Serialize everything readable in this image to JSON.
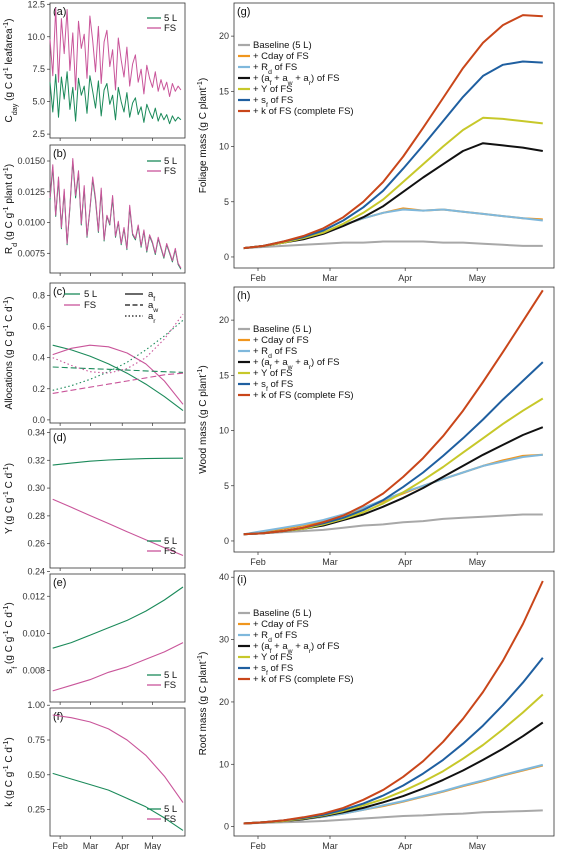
{
  "colors": {
    "green": "#1b8a5a",
    "pink": "#c9559a",
    "baseline": "#a8a8a8",
    "cday": "#f0961e",
    "rd": "#7fb8dc",
    "alloc": "#111111",
    "y": "#c7c82a",
    "sf": "#1f5fa0",
    "k": "#c9461a"
  },
  "month_ticks": [
    "Feb",
    "Mar",
    "Apr",
    "May"
  ],
  "chart_data": [
    {
      "id": "a",
      "panel_label": "(a)",
      "type": "line",
      "ylabel": "C_day (g C d^-1 leafarea^-1)",
      "ylabel_main": "C",
      "ylabel_sub": "day",
      "ylabel_rest": " (g C d",
      "ylabel_sup": "-1",
      "ylabel_rest2": " leafarea",
      "ylabel_sup2": "-1",
      "ylabel_end": ")",
      "ylim": [
        2.2,
        12.6
      ],
      "yticks": [
        "2.5",
        "5.0",
        "7.5",
        "10.0",
        "12.5"
      ],
      "legend": [
        "5 L",
        "FS"
      ],
      "series": [
        {
          "name": "5 L",
          "values": [
            6.5,
            4.2,
            7.1,
            3.8,
            6.9,
            5.2,
            7.3,
            4.4,
            6.1,
            3.5,
            6.8,
            5.5,
            6.2,
            4.1,
            7.0,
            5.8,
            4.5,
            6.6,
            3.9,
            5.9,
            6.4,
            4.8,
            5.5,
            3.6,
            6.1,
            5.0,
            4.2,
            5.7,
            3.8,
            4.9,
            5.3,
            4.0,
            4.6,
            3.4,
            4.8,
            4.2,
            3.7,
            4.5,
            3.5,
            4.1,
            3.6,
            4.0,
            3.3,
            3.9,
            3.5,
            3.8,
            3.6
          ]
        },
        {
          "name": "FS",
          "values": [
            9.8,
            7.0,
            12.2,
            6.5,
            11.4,
            8.7,
            12.1,
            7.4,
            10.3,
            5.9,
            11.2,
            9.1,
            10.2,
            6.8,
            11.6,
            9.7,
            7.3,
            10.8,
            6.4,
            9.6,
            10.5,
            7.7,
            9.0,
            5.9,
            9.9,
            8.2,
            6.9,
            9.2,
            6.2,
            7.9,
            8.6,
            6.5,
            7.5,
            5.6,
            7.8,
            6.8,
            6.1,
            7.3,
            5.8,
            6.7,
            5.9,
            6.5,
            5.4,
            6.4,
            5.8,
            6.2,
            5.9
          ]
        }
      ]
    },
    {
      "id": "b",
      "panel_label": "(b)",
      "type": "line",
      "ylim": [
        0.0059,
        0.0163
      ],
      "yticks": [
        "0.0075",
        "0.0100",
        "0.0125",
        "0.0150"
      ],
      "legend": [
        "5 L",
        "FS"
      ],
      "series": [
        {
          "name": "5 L",
          "values": [
            0.0118,
            0.0145,
            0.0105,
            0.0135,
            0.0095,
            0.0125,
            0.0082,
            0.0112,
            0.015,
            0.012,
            0.014,
            0.0098,
            0.0128,
            0.0088,
            0.011,
            0.0135,
            0.0118,
            0.0092,
            0.0126,
            0.0085,
            0.0105,
            0.0098,
            0.012,
            0.0088,
            0.01,
            0.0082,
            0.0095,
            0.0078,
            0.0112,
            0.009,
            0.0086,
            0.0097,
            0.008,
            0.0093,
            0.0076,
            0.0089,
            0.0083,
            0.0074,
            0.0087,
            0.0079,
            0.0071,
            0.0082,
            0.0075,
            0.0068,
            0.0078,
            0.0066,
            0.0062
          ]
        },
        {
          "name": "FS",
          "values": [
            0.012,
            0.0147,
            0.0106,
            0.0137,
            0.0096,
            0.0127,
            0.0083,
            0.0113,
            0.0152,
            0.0122,
            0.0142,
            0.0099,
            0.013,
            0.0089,
            0.0111,
            0.0137,
            0.012,
            0.0093,
            0.0128,
            0.0086,
            0.0106,
            0.0099,
            0.0122,
            0.0089,
            0.0101,
            0.0083,
            0.0096,
            0.0079,
            0.0114,
            0.0091,
            0.0087,
            0.0098,
            0.0081,
            0.0094,
            0.0077,
            0.009,
            0.0084,
            0.0075,
            0.0088,
            0.008,
            0.0072,
            0.0083,
            0.0076,
            0.0069,
            0.0079,
            0.0067,
            0.0063
          ]
        }
      ]
    },
    {
      "id": "c",
      "panel_label": "(c)",
      "type": "line",
      "ylabel": "Allocations (g C g^-1 C d^-1)",
      "ylim": [
        -0.02,
        0.88
      ],
      "yticks": [
        "0.0",
        "0.2",
        "0.4",
        "0.6",
        "0.8"
      ],
      "legend": [
        "5 L",
        "FS"
      ],
      "legend2": [
        "a_f",
        "a_w",
        "a_r"
      ],
      "series": [
        {
          "name": "5 L",
          "sub": "a_f",
          "dash": "solid",
          "values": [
            0.48,
            0.45,
            0.41,
            0.36,
            0.3,
            0.23,
            0.15,
            0.06
          ]
        },
        {
          "name": "FS",
          "sub": "a_f",
          "dash": "solid",
          "values": [
            0.42,
            0.46,
            0.48,
            0.47,
            0.43,
            0.36,
            0.25,
            0.1
          ]
        },
        {
          "name": "5 L",
          "sub": "a_w",
          "dash": "dash",
          "values": [
            0.34,
            0.335,
            0.33,
            0.325,
            0.32,
            0.315,
            0.31,
            0.305
          ]
        },
        {
          "name": "FS",
          "sub": "a_w",
          "dash": "dash",
          "values": [
            0.17,
            0.19,
            0.21,
            0.23,
            0.25,
            0.27,
            0.29,
            0.3
          ]
        },
        {
          "name": "5 L",
          "sub": "a_r",
          "dash": "dot",
          "values": [
            0.19,
            0.22,
            0.26,
            0.31,
            0.37,
            0.45,
            0.54,
            0.64
          ]
        },
        {
          "name": "FS",
          "sub": "a_r",
          "dash": "dot",
          "values": [
            0.4,
            0.35,
            0.31,
            0.3,
            0.33,
            0.4,
            0.52,
            0.68
          ]
        }
      ]
    },
    {
      "id": "d",
      "panel_label": "(d)",
      "type": "line",
      "ylabel": "Y (g C g^-1 C d^-1)",
      "ylim": [
        0.2425,
        0.3425
      ],
      "yticks": [
        "0.24",
        "0.26",
        "0.28",
        "0.30",
        "0.32",
        "0.34"
      ],
      "legend": [
        "5 L",
        "FS"
      ],
      "series": [
        {
          "name": "5 L",
          "values": [
            0.3165,
            0.318,
            0.3193,
            0.3202,
            0.3208,
            0.3212,
            0.3214,
            0.3215
          ]
        },
        {
          "name": "FS",
          "values": [
            0.292,
            0.2862,
            0.2803,
            0.2745,
            0.2686,
            0.2628,
            0.257,
            0.2515
          ]
        }
      ]
    },
    {
      "id": "e",
      "panel_label": "(e)",
      "type": "line",
      "ylabel": "s_f (g C g^-1 C d^-1)",
      "ylim": [
        0.0063,
        0.0132
      ],
      "yticks": [
        "0.008",
        "0.010",
        "0.012"
      ],
      "legend": [
        "5 L",
        "FS"
      ],
      "series": [
        {
          "name": "5 L",
          "values": [
            0.0092,
            0.0095,
            0.0099,
            0.0103,
            0.0107,
            0.0112,
            0.0118,
            0.0125
          ]
        },
        {
          "name": "FS",
          "values": [
            0.0069,
            0.0072,
            0.0075,
            0.0079,
            0.0082,
            0.0086,
            0.009,
            0.0095
          ]
        }
      ]
    },
    {
      "id": "f",
      "panel_label": "(f)",
      "type": "line",
      "ylabel": "k (g C g^-1 C d^-1)",
      "ylim": [
        0.06,
        0.98
      ],
      "yticks": [
        "0.25",
        "0.50",
        "0.75",
        "1.00"
      ],
      "legend": [
        "5 L",
        "FS"
      ],
      "series": [
        {
          "name": "5 L",
          "values": [
            0.51,
            0.47,
            0.43,
            0.39,
            0.33,
            0.27,
            0.19,
            0.1
          ]
        },
        {
          "name": "FS",
          "values": [
            0.93,
            0.91,
            0.88,
            0.83,
            0.75,
            0.64,
            0.49,
            0.3
          ]
        }
      ]
    },
    {
      "id": "g",
      "panel_label": "(g)",
      "type": "line",
      "ylabel": "Foliage mass (g C plant^-1)",
      "ylim": [
        -1,
        23
      ],
      "yticks": [
        "0",
        "5",
        "10",
        "15",
        "20"
      ],
      "legend": [
        "Baseline (5 L)",
        "+ Cday of FS",
        "+ R_d of FS",
        "+ (a_f + a_w + a_r) of FS",
        "+ Y of FS",
        "+ s_f of FS",
        "+ k of FS (complete FS)"
      ],
      "series": [
        {
          "name": "Baseline (5 L)",
          "values": [
            0.8,
            0.9,
            1.0,
            1.1,
            1.2,
            1.3,
            1.3,
            1.4,
            1.4,
            1.4,
            1.3,
            1.3,
            1.2,
            1.1,
            1.0,
            1.0
          ]
        },
        {
          "name": "+ Cday of FS",
          "values": [
            0.8,
            1.0,
            1.3,
            1.7,
            2.2,
            2.9,
            3.5,
            4.0,
            4.4,
            4.2,
            4.3,
            4.1,
            3.9,
            3.7,
            3.5,
            3.4
          ]
        },
        {
          "name": "+ R_d of FS",
          "values": [
            0.8,
            1.0,
            1.3,
            1.7,
            2.2,
            2.9,
            3.5,
            4.0,
            4.3,
            4.2,
            4.3,
            4.1,
            3.9,
            3.7,
            3.5,
            3.3
          ]
        },
        {
          "name": "+ (a_f + a_w + a_r) of FS",
          "values": [
            0.8,
            1.0,
            1.3,
            1.6,
            2.1,
            2.8,
            3.6,
            4.6,
            5.9,
            7.2,
            8.4,
            9.6,
            10.3,
            10.1,
            9.9,
            9.6
          ]
        },
        {
          "name": "+ Y of FS",
          "values": [
            0.8,
            1.0,
            1.3,
            1.7,
            2.2,
            3.0,
            4.0,
            5.2,
            6.8,
            8.4,
            10.0,
            11.5,
            12.6,
            12.5,
            12.3,
            12.1
          ]
        },
        {
          "name": "+ s_f of FS",
          "values": [
            0.8,
            1.0,
            1.4,
            1.8,
            2.4,
            3.3,
            4.5,
            6.0,
            8.0,
            10.1,
            12.3,
            14.5,
            16.4,
            17.4,
            17.7,
            17.6
          ]
        },
        {
          "name": "+ k of FS (complete FS)",
          "values": [
            0.8,
            1.0,
            1.4,
            1.9,
            2.6,
            3.6,
            5.0,
            6.8,
            9.1,
            11.7,
            14.4,
            17.1,
            19.4,
            21.0,
            21.9,
            21.8
          ]
        }
      ]
    },
    {
      "id": "h",
      "panel_label": "(h)",
      "type": "line",
      "ylabel": "Wood mass (g C plant^-1)",
      "ylim": [
        -1,
        23
      ],
      "yticks": [
        "0",
        "5",
        "10",
        "15",
        "20"
      ],
      "legend": [
        "Baseline (5 L)",
        "+ Cday of FS",
        "+ R_d of FS",
        "+ (a_f + a_w + a_r) of FS",
        "+ Y of FS",
        "+ s_f of FS",
        "+ k of FS (complete FS)"
      ],
      "series": [
        {
          "name": "Baseline (5 L)",
          "values": [
            0.6,
            0.7,
            0.8,
            0.9,
            1.0,
            1.2,
            1.4,
            1.5,
            1.7,
            1.8,
            2.0,
            2.1,
            2.2,
            2.3,
            2.4,
            2.4
          ]
        },
        {
          "name": "+ Cday of FS",
          "values": [
            0.6,
            0.8,
            1.1,
            1.4,
            1.8,
            2.3,
            2.9,
            3.6,
            4.3,
            5.0,
            5.6,
            6.2,
            6.8,
            7.3,
            7.7,
            7.8
          ]
        },
        {
          "name": "+ R_d of FS",
          "values": [
            0.6,
            0.9,
            1.2,
            1.5,
            1.9,
            2.4,
            3.0,
            3.7,
            4.4,
            5.0,
            5.6,
            6.2,
            6.8,
            7.2,
            7.6,
            7.8
          ]
        },
        {
          "name": "+ (a_f + a_w + a_r) of FS",
          "values": [
            0.6,
            0.7,
            0.9,
            1.1,
            1.4,
            1.9,
            2.4,
            3.1,
            3.9,
            4.8,
            5.8,
            6.8,
            7.8,
            8.7,
            9.6,
            10.3
          ]
        },
        {
          "name": "+ Y of FS",
          "values": [
            0.6,
            0.7,
            0.9,
            1.1,
            1.5,
            2.0,
            2.6,
            3.4,
            4.4,
            5.5,
            6.7,
            8.0,
            9.3,
            10.6,
            11.8,
            12.9
          ]
        },
        {
          "name": "+ s_f of FS",
          "values": [
            0.6,
            0.7,
            0.9,
            1.2,
            1.6,
            2.1,
            2.8,
            3.7,
            4.9,
            6.2,
            7.7,
            9.3,
            11.0,
            12.8,
            14.5,
            16.2
          ]
        },
        {
          "name": "+ k of FS (complete FS)",
          "values": [
            0.6,
            0.7,
            0.9,
            1.2,
            1.7,
            2.3,
            3.2,
            4.3,
            5.8,
            7.5,
            9.5,
            11.8,
            14.4,
            17.1,
            19.9,
            22.7
          ]
        }
      ]
    },
    {
      "id": "i",
      "panel_label": "(i)",
      "type": "line",
      "ylabel": "Root mass (g C plant^-1)",
      "ylim": [
        -1.5,
        41
      ],
      "yticks": [
        "0",
        "10",
        "20",
        "30",
        "40"
      ],
      "legend": [
        "Baseline (5 L)",
        "+ Cday of FS",
        "+ R_d of FS",
        "+ (a_f + a_w + a_r) of FS",
        "+ Y of FS",
        "+ s_f of FS",
        "+ k of FS (complete FS)"
      ],
      "series": [
        {
          "name": "Baseline (5 L)",
          "values": [
            0.5,
            0.6,
            0.7,
            0.8,
            0.9,
            1.1,
            1.3,
            1.5,
            1.7,
            1.8,
            2.0,
            2.1,
            2.3,
            2.4,
            2.5,
            2.6
          ]
        },
        {
          "name": "+ Cday of FS",
          "values": [
            0.5,
            0.7,
            0.9,
            1.2,
            1.6,
            2.1,
            2.7,
            3.3,
            4.0,
            4.8,
            5.6,
            6.5,
            7.3,
            8.2,
            9.0,
            9.8
          ]
        },
        {
          "name": "+ R_d of FS",
          "values": [
            0.5,
            0.7,
            0.9,
            1.2,
            1.6,
            2.1,
            2.7,
            3.4,
            4.1,
            4.9,
            5.7,
            6.6,
            7.4,
            8.3,
            9.1,
            9.9
          ]
        },
        {
          "name": "+ (a_f + a_w + a_r) of FS",
          "values": [
            0.5,
            0.7,
            0.9,
            1.2,
            1.7,
            2.3,
            3.0,
            3.9,
            4.9,
            6.1,
            7.5,
            9.0,
            10.7,
            12.5,
            14.5,
            16.7
          ]
        },
        {
          "name": "+ Y of FS",
          "values": [
            0.5,
            0.7,
            0.9,
            1.3,
            1.8,
            2.5,
            3.4,
            4.4,
            5.7,
            7.2,
            8.9,
            10.9,
            13.1,
            15.6,
            18.3,
            21.2
          ]
        },
        {
          "name": "+ s_f of FS",
          "values": [
            0.5,
            0.7,
            1.0,
            1.4,
            1.9,
            2.7,
            3.7,
            5.0,
            6.6,
            8.5,
            10.7,
            13.3,
            16.2,
            19.5,
            23.1,
            27.1
          ]
        },
        {
          "name": "+ k of FS (complete FS)",
          "values": [
            0.5,
            0.7,
            1.0,
            1.5,
            2.1,
            3.0,
            4.3,
            5.9,
            8.0,
            10.5,
            13.6,
            17.3,
            21.6,
            26.6,
            32.5,
            39.4
          ]
        }
      ]
    }
  ]
}
